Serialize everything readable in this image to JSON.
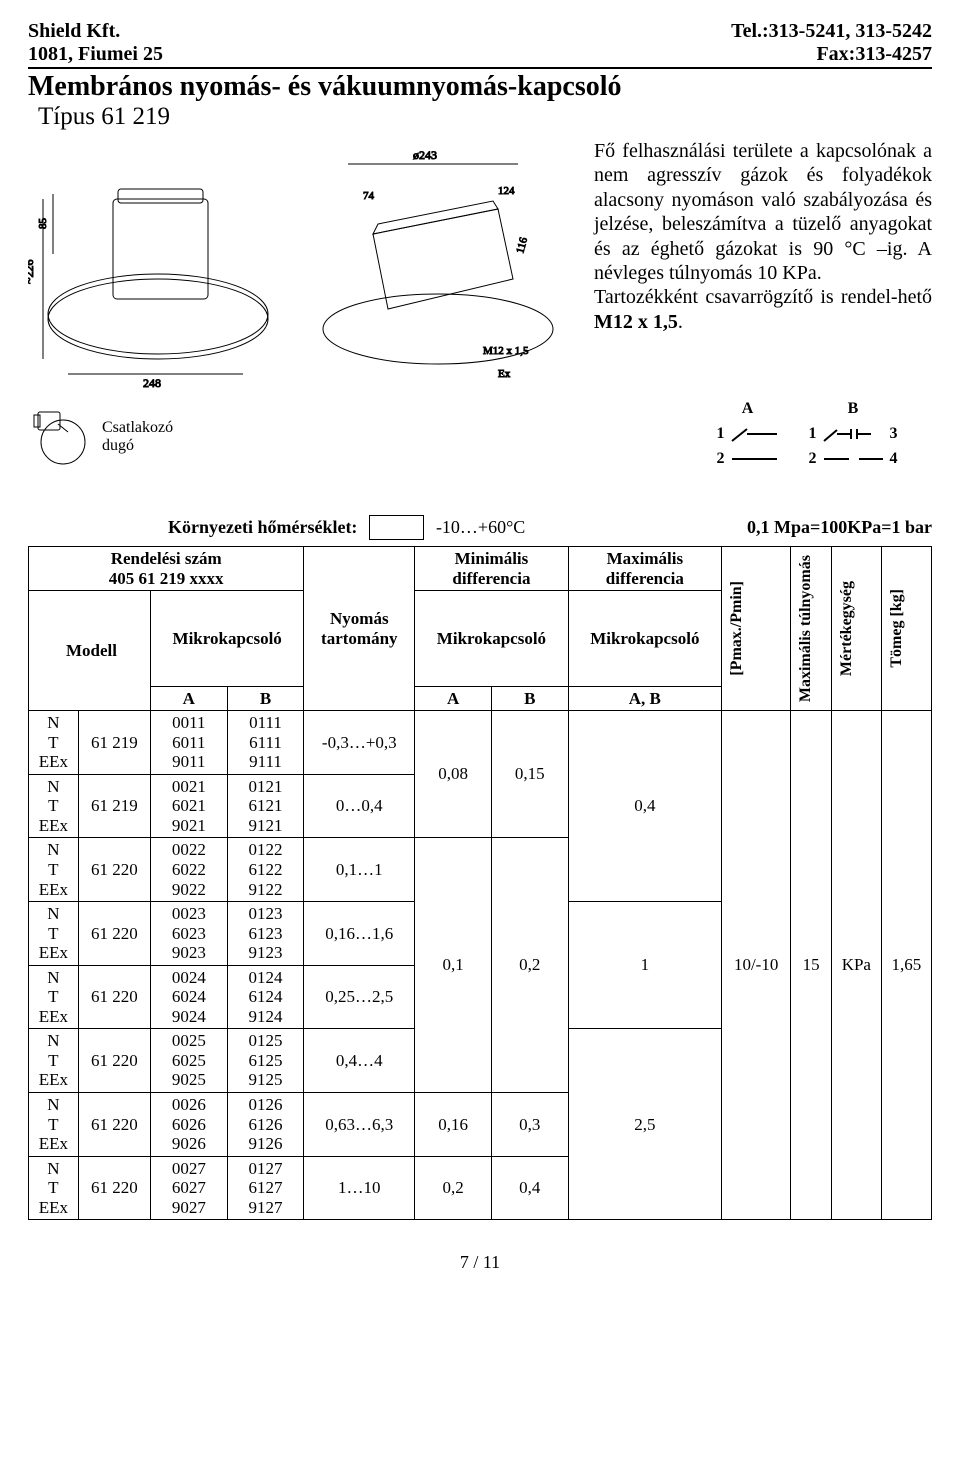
{
  "header": {
    "company": "Shield Kft.",
    "tel": "Tel.:313-5241, 313-5242",
    "addr": "1081, Fiumei 25",
    "fax": "Fax:313-4257"
  },
  "title": {
    "main": "Membrános nyomás- és vákuumnyomás-kapcsoló",
    "sub": "Típus 61 219"
  },
  "description": {
    "p1_a": "Fő felhasználási területe a kapcsolónak a nem agresszív gázok és folyadékok alacsony nyomáson való szabályozása és jelzése, beleszámítva a tüzelő anyagokat és az éghető gázokat is 90 °C –ig. A névleges túlnyomás 10 KPa.",
    "p2_a": "Tartozékként csavarrögzítő is rendel-hető ",
    "p2_b": "M12 x 1,5",
    "p2_c": "."
  },
  "plug_label_1": "Csatlakozó",
  "plug_label_2": "dugó",
  "temp_label": "Környezeti hőmérséklet:",
  "temp_range": "-10…+60°C",
  "bar_note": "0,1 Mpa=100KPa=1 bar",
  "table_headers": {
    "order_no_1": "Rendelési szám",
    "order_no_2": "405 61 219 xxxx",
    "modell": "Modell",
    "micro": "Mikrokapcsoló",
    "A": "A",
    "B": "B",
    "pressure_range_1": "Nyomás",
    "pressure_range_2": "tartomány",
    "min_diff_1": "Minimális",
    "min_diff_2": "differencia",
    "max_diff_1": "Maximális",
    "max_diff_2": "differencia",
    "AB": "A, B",
    "pmax": "[Pmax./Pmin]",
    "max_over": "Maximális túlnyomás",
    "unit": "Mértékegység",
    "mass": "Tömeg [kg]"
  },
  "rows": [
    {
      "type": "61 219",
      "codesA": [
        "0011",
        "6011",
        "9011"
      ],
      "codesB": [
        "0111",
        "6111",
        "9111"
      ],
      "range": "-0,3…+0,3"
    },
    {
      "type": "61 219",
      "codesA": [
        "0021",
        "6021",
        "9021"
      ],
      "codesB": [
        "0121",
        "6121",
        "9121"
      ],
      "range": "0…0,4"
    },
    {
      "type": "61 220",
      "codesA": [
        "0022",
        "6022",
        "9022"
      ],
      "codesB": [
        "0122",
        "6122",
        "9122"
      ],
      "range": "0,1…1"
    },
    {
      "type": "61 220",
      "codesA": [
        "0023",
        "6023",
        "9023"
      ],
      "codesB": [
        "0123",
        "6123",
        "9123"
      ],
      "range": "0,16…1,6"
    },
    {
      "type": "61 220",
      "codesA": [
        "0024",
        "6024",
        "9024"
      ],
      "codesB": [
        "0124",
        "6124",
        "9124"
      ],
      "range": "0,25…2,5"
    },
    {
      "type": "61 220",
      "codesA": [
        "0025",
        "6025",
        "9025"
      ],
      "codesB": [
        "0125",
        "6125",
        "9125"
      ],
      "range": "0,4…4"
    },
    {
      "type": "61 220",
      "codesA": [
        "0026",
        "6026",
        "9026"
      ],
      "codesB": [
        "0126",
        "6126",
        "9126"
      ],
      "range": "0,63…6,3"
    },
    {
      "type": "61 220",
      "codesA": [
        "0027",
        "6027",
        "9027"
      ],
      "codesB": [
        "0127",
        "6127",
        "9127"
      ],
      "range": "1…10"
    }
  ],
  "min_diff": [
    {
      "A": "0,08",
      "B": "0,15"
    },
    {
      "A": "0,1",
      "B": "0,2"
    },
    {
      "A": "0,16",
      "B": "0,3"
    },
    {
      "A": "0,2",
      "B": "0,4"
    }
  ],
  "max_diff": [
    "0,4",
    "1",
    "2,5"
  ],
  "pmax_val": "10/-10",
  "overpressure": "15",
  "unit_val": "KPa",
  "mass_val": "1,65",
  "ntee": [
    "N",
    "T",
    "EEx"
  ],
  "footer_page": "7 / 11"
}
